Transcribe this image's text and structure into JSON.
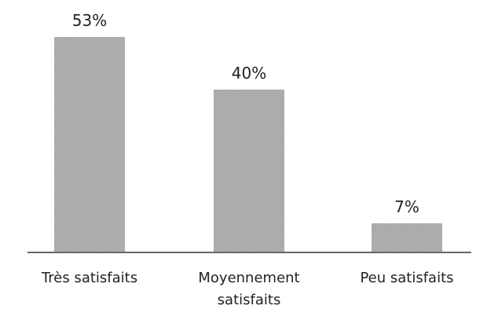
{
  "chart_data": {
    "type": "bar",
    "categories": [
      "Très satisfaits",
      "Moyennement satisfaits",
      "Peu satisfaits"
    ],
    "values": [
      53,
      40,
      7
    ],
    "value_labels": [
      "53%",
      "40%",
      "7%"
    ],
    "color": "#b4b4b4"
  }
}
